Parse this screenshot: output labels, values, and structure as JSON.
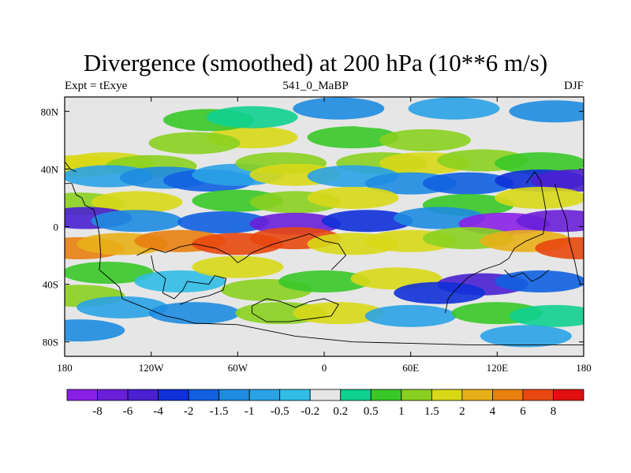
{
  "title": "Divergence (smoothed) at 200 hPa (10**6 m/s)",
  "left_label": "Expt = tExye",
  "center_label": "541_0_MaBP",
  "right_label": "DJF",
  "chart_data": {
    "type": "heatmap",
    "title": "Divergence (smoothed) at 200 hPa (10**6 m/s)",
    "xlim": [
      -180,
      180
    ],
    "ylim": [
      -90,
      90
    ],
    "x_ticks": [
      {
        "value": -180,
        "label": "180"
      },
      {
        "value": -120,
        "label": "120W"
      },
      {
        "value": -60,
        "label": "60W"
      },
      {
        "value": 0,
        "label": "0"
      },
      {
        "value": 60,
        "label": "60E"
      },
      {
        "value": 120,
        "label": "120E"
      },
      {
        "value": 180,
        "label": "180"
      }
    ],
    "y_ticks": [
      {
        "value": 80,
        "label": "80N"
      },
      {
        "value": 40,
        "label": "40N"
      },
      {
        "value": 0,
        "label": "0"
      },
      {
        "value": -40,
        "label": "40S"
      },
      {
        "value": -80,
        "label": "80S"
      }
    ],
    "colorbar": {
      "levels": [
        "-8",
        "-6",
        "-4",
        "-2",
        "-1.5",
        "-1",
        "-0.5",
        "-0.2",
        "0.2",
        "0.5",
        "1",
        "1.5",
        "2",
        "4",
        "6",
        "8"
      ],
      "colors": [
        "#8a20e6",
        "#6a1fd8",
        "#4a20d0",
        "#1030d8",
        "#1060e0",
        "#1e8ce0",
        "#2aa2e6",
        "#30bde6",
        "#e6e6e6",
        "#10d090",
        "#38c828",
        "#8ad020",
        "#d8d818",
        "#e8b018",
        "#e88010",
        "#e84810",
        "#e01010"
      ]
    },
    "fields": [
      {
        "lon": -170,
        "lat": 42,
        "level": 12
      },
      {
        "lon": -150,
        "lat": 44,
        "level": 12
      },
      {
        "lon": -120,
        "lat": 42,
        "level": 11
      },
      {
        "lon": -150,
        "lat": 35,
        "level": 6
      },
      {
        "lon": -110,
        "lat": 34,
        "level": 5
      },
      {
        "lon": -80,
        "lat": 32,
        "level": 4
      },
      {
        "lon": -60,
        "lat": 36,
        "level": 6
      },
      {
        "lon": -30,
        "lat": 44,
        "level": 11
      },
      {
        "lon": -20,
        "lat": 36,
        "level": 12
      },
      {
        "lon": 40,
        "lat": 44,
        "level": 11
      },
      {
        "lon": 70,
        "lat": 44,
        "level": 12
      },
      {
        "lon": 110,
        "lat": 46,
        "level": 11
      },
      {
        "lon": 150,
        "lat": 44,
        "level": 10
      },
      {
        "lon": 20,
        "lat": 35,
        "level": 6
      },
      {
        "lon": 60,
        "lat": 30,
        "level": 5
      },
      {
        "lon": 100,
        "lat": 30,
        "level": 4
      },
      {
        "lon": 150,
        "lat": 32,
        "level": 3
      },
      {
        "lon": 175,
        "lat": 32,
        "level": 2
      },
      {
        "lon": -50,
        "lat": 62,
        "level": 12
      },
      {
        "lon": -90,
        "lat": 58,
        "level": 11
      },
      {
        "lon": -80,
        "lat": 74,
        "level": 10
      },
      {
        "lon": -50,
        "lat": 76,
        "level": 9
      },
      {
        "lon": 20,
        "lat": 62,
        "level": 10
      },
      {
        "lon": 70,
        "lat": 60,
        "level": 11
      },
      {
        "lon": 40,
        "lat": 76,
        "level": 8
      },
      {
        "lon": 10,
        "lat": 82,
        "level": 5
      },
      {
        "lon": 90,
        "lat": 82,
        "level": 6
      },
      {
        "lon": 160,
        "lat": 80,
        "level": 5
      },
      {
        "lon": -170,
        "lat": 16,
        "level": 11
      },
      {
        "lon": -130,
        "lat": 17,
        "level": 12
      },
      {
        "lon": -60,
        "lat": 18,
        "level": 10
      },
      {
        "lon": -20,
        "lat": 17,
        "level": 11
      },
      {
        "lon": 20,
        "lat": 20,
        "level": 12
      },
      {
        "lon": 100,
        "lat": 15,
        "level": 10
      },
      {
        "lon": 150,
        "lat": 20,
        "level": 12
      },
      {
        "lon": -165,
        "lat": 6,
        "level": 2
      },
      {
        "lon": -130,
        "lat": 4,
        "level": 5
      },
      {
        "lon": -70,
        "lat": 3,
        "level": 4
      },
      {
        "lon": -20,
        "lat": 2,
        "level": 1
      },
      {
        "lon": 30,
        "lat": 4,
        "level": 3
      },
      {
        "lon": 80,
        "lat": 6,
        "level": 5
      },
      {
        "lon": 125,
        "lat": 2,
        "level": 0
      },
      {
        "lon": 165,
        "lat": 4,
        "level": 1
      },
      {
        "lon": -170,
        "lat": -15,
        "level": 14
      },
      {
        "lon": -140,
        "lat": -12,
        "level": 13
      },
      {
        "lon": -100,
        "lat": -10,
        "level": 14
      },
      {
        "lon": -60,
        "lat": -12,
        "level": 15
      },
      {
        "lon": -20,
        "lat": -8,
        "level": 15
      },
      {
        "lon": 20,
        "lat": -12,
        "level": 12
      },
      {
        "lon": 60,
        "lat": -10,
        "level": 12
      },
      {
        "lon": 100,
        "lat": -8,
        "level": 11
      },
      {
        "lon": 140,
        "lat": -10,
        "level": 13
      },
      {
        "lon": 178,
        "lat": -15,
        "level": 15
      },
      {
        "lon": -150,
        "lat": -32,
        "level": 10
      },
      {
        "lon": -100,
        "lat": -38,
        "level": 7
      },
      {
        "lon": -60,
        "lat": -28,
        "level": 12
      },
      {
        "lon": -40,
        "lat": -44,
        "level": 11
      },
      {
        "lon": 0,
        "lat": -38,
        "level": 10
      },
      {
        "lon": 50,
        "lat": -36,
        "level": 12
      },
      {
        "lon": 110,
        "lat": -40,
        "level": 2
      },
      {
        "lon": 80,
        "lat": -46,
        "level": 3
      },
      {
        "lon": 150,
        "lat": -38,
        "level": 4
      },
      {
        "lon": -170,
        "lat": -48,
        "level": 11
      },
      {
        "lon": -140,
        "lat": -56,
        "level": 6
      },
      {
        "lon": -90,
        "lat": -60,
        "level": 5
      },
      {
        "lon": -30,
        "lat": -60,
        "level": 11
      },
      {
        "lon": 10,
        "lat": -60,
        "level": 12
      },
      {
        "lon": 60,
        "lat": -62,
        "level": 6
      },
      {
        "lon": 120,
        "lat": -60,
        "level": 10
      },
      {
        "lon": 160,
        "lat": -62,
        "level": 9
      },
      {
        "lon": -170,
        "lat": -72,
        "level": 5
      },
      {
        "lon": 140,
        "lat": -76,
        "level": 6
      }
    ],
    "coastlines": [
      [
        [
          -180,
          30
        ],
        [
          -175,
          30
        ],
        [
          -172,
          22
        ],
        [
          -168,
          20
        ],
        [
          -166,
          15
        ],
        [
          -160,
          12
        ],
        [
          -158,
          5
        ],
        [
          -156,
          -5
        ],
        [
          -155,
          -20
        ],
        [
          -156,
          -30
        ],
        [
          -150,
          -35
        ],
        [
          -142,
          -42
        ],
        [
          -140,
          -50
        ],
        [
          -130,
          -54
        ],
        [
          -120,
          -58
        ],
        [
          -110,
          -62
        ],
        [
          -100,
          -64
        ],
        [
          -90,
          -67
        ],
        [
          -60,
          -68
        ],
        [
          -40,
          -72
        ],
        [
          -20,
          -76
        ],
        [
          20,
          -80
        ],
        [
          100,
          -82
        ],
        [
          180,
          -82
        ]
      ],
      [
        [
          -130,
          -20
        ],
        [
          -120,
          -15
        ],
        [
          -110,
          -18
        ],
        [
          -100,
          -14
        ],
        [
          -90,
          -12
        ],
        [
          -75,
          -15
        ],
        [
          -65,
          -20
        ],
        [
          -60,
          -25
        ],
        [
          -55,
          -22
        ],
        [
          -50,
          -18
        ],
        [
          -35,
          -12
        ],
        [
          -20,
          -8
        ],
        [
          -10,
          -5
        ],
        [
          0,
          -10
        ],
        [
          10,
          -12
        ],
        [
          15,
          -20
        ],
        [
          10,
          -25
        ],
        [
          5,
          -30
        ]
      ],
      [
        [
          -120,
          -20
        ],
        [
          -118,
          -30
        ],
        [
          -110,
          -36
        ],
        [
          -112,
          -46
        ],
        [
          -104,
          -50
        ],
        [
          -98,
          -44
        ],
        [
          -95,
          -38
        ],
        [
          -80,
          -40
        ],
        [
          -76,
          -34
        ],
        [
          -68,
          -36
        ],
        [
          -70,
          -44
        ],
        [
          -80,
          -48
        ],
        [
          -90,
          -50
        ],
        [
          -100,
          -54
        ]
      ],
      [
        [
          -50,
          -55
        ],
        [
          -40,
          -50
        ],
        [
          -30,
          -52
        ],
        [
          -20,
          -56
        ],
        [
          -10,
          -52
        ],
        [
          0,
          -50
        ],
        [
          10,
          -54
        ],
        [
          5,
          -62
        ],
        [
          -10,
          -64
        ],
        [
          -25,
          -66
        ],
        [
          -40,
          -66
        ],
        [
          -50,
          -60
        ],
        [
          -50,
          -55
        ]
      ],
      [
        [
          140,
          30
        ],
        [
          146,
          38
        ],
        [
          150,
          32
        ],
        [
          154,
          10
        ],
        [
          152,
          -5
        ],
        [
          140,
          -10
        ],
        [
          132,
          -15
        ],
        [
          128,
          -22
        ],
        [
          122,
          -26
        ],
        [
          110,
          -30
        ],
        [
          100,
          -35
        ],
        [
          95,
          -40
        ],
        [
          90,
          -45
        ],
        [
          86,
          -50
        ],
        [
          84,
          -60
        ]
      ],
      [
        [
          160,
          30
        ],
        [
          164,
          15
        ],
        [
          168,
          5
        ],
        [
          170,
          -10
        ],
        [
          174,
          -25
        ],
        [
          176,
          -35
        ],
        [
          178,
          -40
        ]
      ],
      [
        [
          125,
          -30
        ],
        [
          130,
          -35
        ],
        [
          138,
          -32
        ],
        [
          144,
          -38
        ],
        [
          150,
          -35
        ],
        [
          156,
          -30
        ]
      ],
      [
        [
          -180,
          45
        ],
        [
          -176,
          40
        ],
        [
          -172,
          38
        ]
      ]
    ]
  }
}
